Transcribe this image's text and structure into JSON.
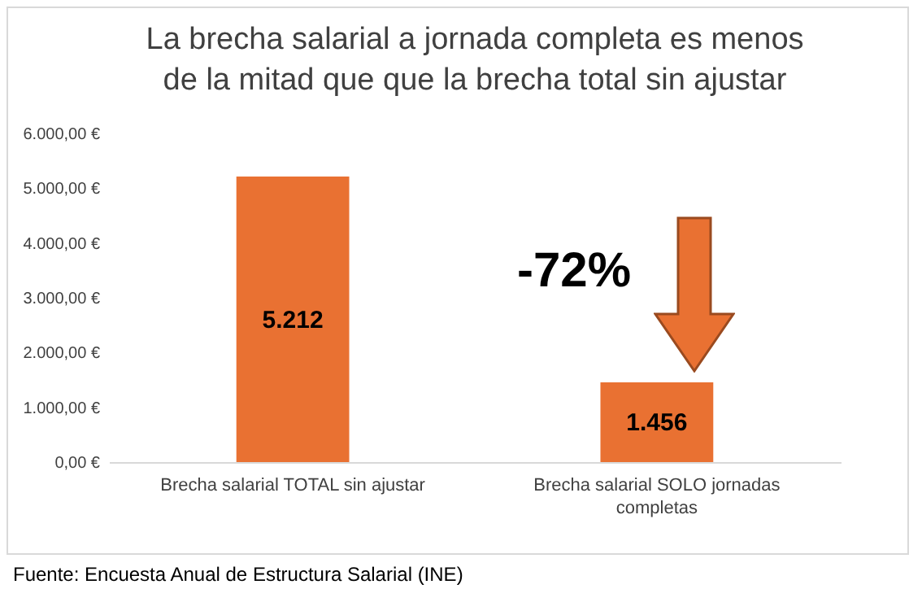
{
  "chart_data": {
    "type": "bar",
    "title": "La brecha salarial a jornada completa es menos\nde la mitad que que la brecha total sin ajustar",
    "categories": [
      "Brecha salarial TOTAL sin ajustar",
      "Brecha salarial SOLO jornadas completas"
    ],
    "values": [
      5212,
      1456
    ],
    "color": "#e97132",
    "value_labels": [
      "5.212",
      "1.456"
    ],
    "ylim": [
      0,
      6000
    ],
    "yticks": [
      {
        "value": 0,
        "label": "0,00 €"
      },
      {
        "value": 1000,
        "label": "1.000,00 €"
      },
      {
        "value": 2000,
        "label": "2.000,00 €"
      },
      {
        "value": 3000,
        "label": "3.000,00 €"
      },
      {
        "value": 4000,
        "label": "4.000,00 €"
      },
      {
        "value": 5000,
        "label": "5.000,00 €"
      },
      {
        "value": 6000,
        "label": "6.000,00 €"
      }
    ],
    "grid": false,
    "annotations": [
      "-72%",
      "Fuente: Encuesta Anual de Estructura Salarial (INE)"
    ]
  }
}
